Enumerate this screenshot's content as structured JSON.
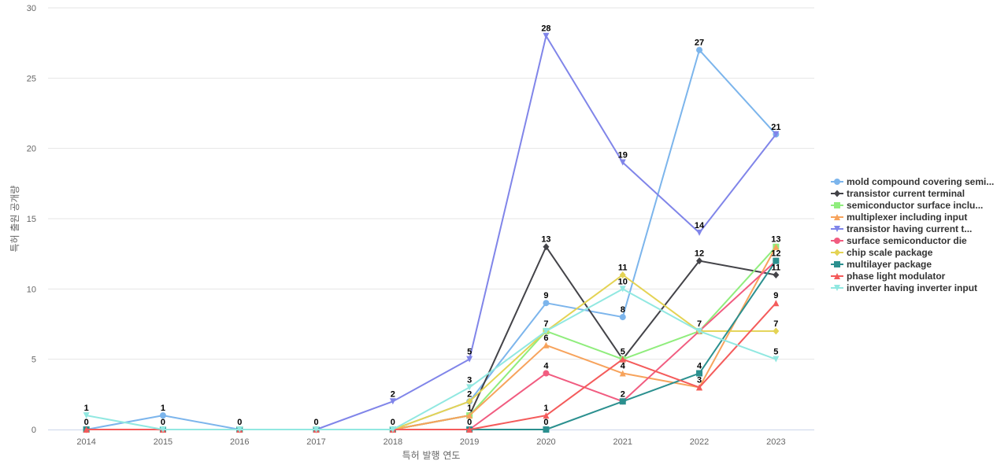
{
  "chart_data": {
    "type": "line",
    "xlabel": "특허 발행 연도",
    "ylabel": "특허 출원 공개량",
    "ylim": [
      0,
      30
    ],
    "yticks": [
      0,
      5,
      10,
      15,
      20,
      25,
      30
    ],
    "grid": true,
    "legend_position": "right",
    "categories": [
      "2014",
      "2015",
      "2016",
      "2017",
      "2018",
      "2019",
      "2020",
      "2021",
      "2022",
      "2023"
    ],
    "series": [
      {
        "name": "mold compound covering semi...",
        "color": "#7cb5ec",
        "marker": "circle",
        "values": [
          0,
          1,
          0,
          0,
          0,
          2,
          9,
          8,
          27,
          21
        ]
      },
      {
        "name": "transistor current terminal",
        "color": "#434348",
        "marker": "diamond",
        "values": [
          0,
          0,
          0,
          0,
          0,
          1,
          13,
          5,
          12,
          11
        ]
      },
      {
        "name": "semiconductor surface inclu...",
        "color": "#90ed7d",
        "marker": "square",
        "values": [
          0,
          0,
          0,
          0,
          0,
          1,
          7,
          5,
          7,
          13
        ]
      },
      {
        "name": "multiplexer including input",
        "color": "#f7a35c",
        "marker": "triangle",
        "values": [
          0,
          0,
          0,
          0,
          0,
          1,
          6,
          4,
          3,
          13
        ]
      },
      {
        "name": "transistor having current t...",
        "color": "#8085e9",
        "marker": "triangle-down",
        "values": [
          0,
          0,
          0,
          0,
          2,
          5,
          28,
          19,
          14,
          21
        ]
      },
      {
        "name": "surface semiconductor die",
        "color": "#f15c80",
        "marker": "circle",
        "values": [
          0,
          0,
          0,
          0,
          0,
          0,
          4,
          2,
          7,
          12
        ]
      },
      {
        "name": "chip scale package",
        "color": "#e4d354",
        "marker": "diamond",
        "values": [
          0,
          0,
          0,
          0,
          0,
          2,
          7,
          11,
          7,
          7
        ]
      },
      {
        "name": "multilayer package",
        "color": "#2b908f",
        "marker": "square",
        "values": [
          0,
          0,
          0,
          0,
          0,
          0,
          0,
          2,
          4,
          12
        ]
      },
      {
        "name": "phase light modulator",
        "color": "#f45b5b",
        "marker": "triangle",
        "values": [
          0,
          0,
          0,
          0,
          0,
          0,
          1,
          5,
          3,
          9
        ]
      },
      {
        "name": "inverter having inverter input",
        "color": "#91e8e1",
        "marker": "triangle-down",
        "values": [
          1,
          0,
          0,
          0,
          0,
          3,
          7,
          10,
          7,
          5
        ]
      }
    ],
    "data_labels": [
      {
        "x": "2014",
        "value": "1",
        "series": 9
      },
      {
        "x": "2014",
        "value": "0",
        "series": 0
      },
      {
        "x": "2015",
        "value": "1",
        "series": 0
      },
      {
        "x": "2015",
        "value": "0",
        "series": 1
      },
      {
        "x": "2016",
        "value": "0",
        "series": 0
      },
      {
        "x": "2017",
        "value": "0",
        "series": 0
      },
      {
        "x": "2018",
        "value": "2",
        "series": 4
      },
      {
        "x": "2018",
        "value": "0",
        "series": 0
      },
      {
        "x": "2019",
        "value": "5",
        "series": 4
      },
      {
        "x": "2019",
        "value": "3",
        "series": 9
      },
      {
        "x": "2019",
        "value": "2",
        "series": 0
      },
      {
        "x": "2019",
        "value": "1",
        "series": 1
      },
      {
        "x": "2019",
        "value": "0",
        "series": 5
      },
      {
        "x": "2020",
        "value": "28",
        "series": 4
      },
      {
        "x": "2020",
        "value": "13",
        "series": 1
      },
      {
        "x": "2020",
        "value": "9",
        "series": 0
      },
      {
        "x": "2020",
        "value": "7",
        "series": 2
      },
      {
        "x": "2020",
        "value": "6",
        "series": 3
      },
      {
        "x": "2020",
        "value": "4",
        "series": 5
      },
      {
        "x": "2020",
        "value": "1",
        "series": 8
      },
      {
        "x": "2020",
        "value": "0",
        "series": 7
      },
      {
        "x": "2021",
        "value": "19",
        "series": 4
      },
      {
        "x": "2021",
        "value": "11",
        "series": 6
      },
      {
        "x": "2021",
        "value": "10",
        "series": 9
      },
      {
        "x": "2021",
        "value": "8",
        "series": 0
      },
      {
        "x": "2021",
        "value": "5",
        "series": 1
      },
      {
        "x": "2021",
        "value": "4",
        "series": 3
      },
      {
        "x": "2021",
        "value": "2",
        "series": 5
      },
      {
        "x": "2022",
        "value": "27",
        "series": 0
      },
      {
        "x": "2022",
        "value": "14",
        "series": 4
      },
      {
        "x": "2022",
        "value": "12",
        "series": 1
      },
      {
        "x": "2022",
        "value": "7",
        "series": 2
      },
      {
        "x": "2022",
        "value": "4",
        "series": 7
      },
      {
        "x": "2022",
        "value": "3",
        "series": 3
      },
      {
        "x": "2023",
        "value": "21",
        "series": 0
      },
      {
        "x": "2023",
        "value": "13",
        "series": 2
      },
      {
        "x": "2023",
        "value": "12",
        "series": 7
      },
      {
        "x": "2023",
        "value": "11",
        "series": 1
      },
      {
        "x": "2023",
        "value": "9",
        "series": 8
      },
      {
        "x": "2023",
        "value": "7",
        "series": 6
      },
      {
        "x": "2023",
        "value": "5",
        "series": 9
      }
    ]
  }
}
